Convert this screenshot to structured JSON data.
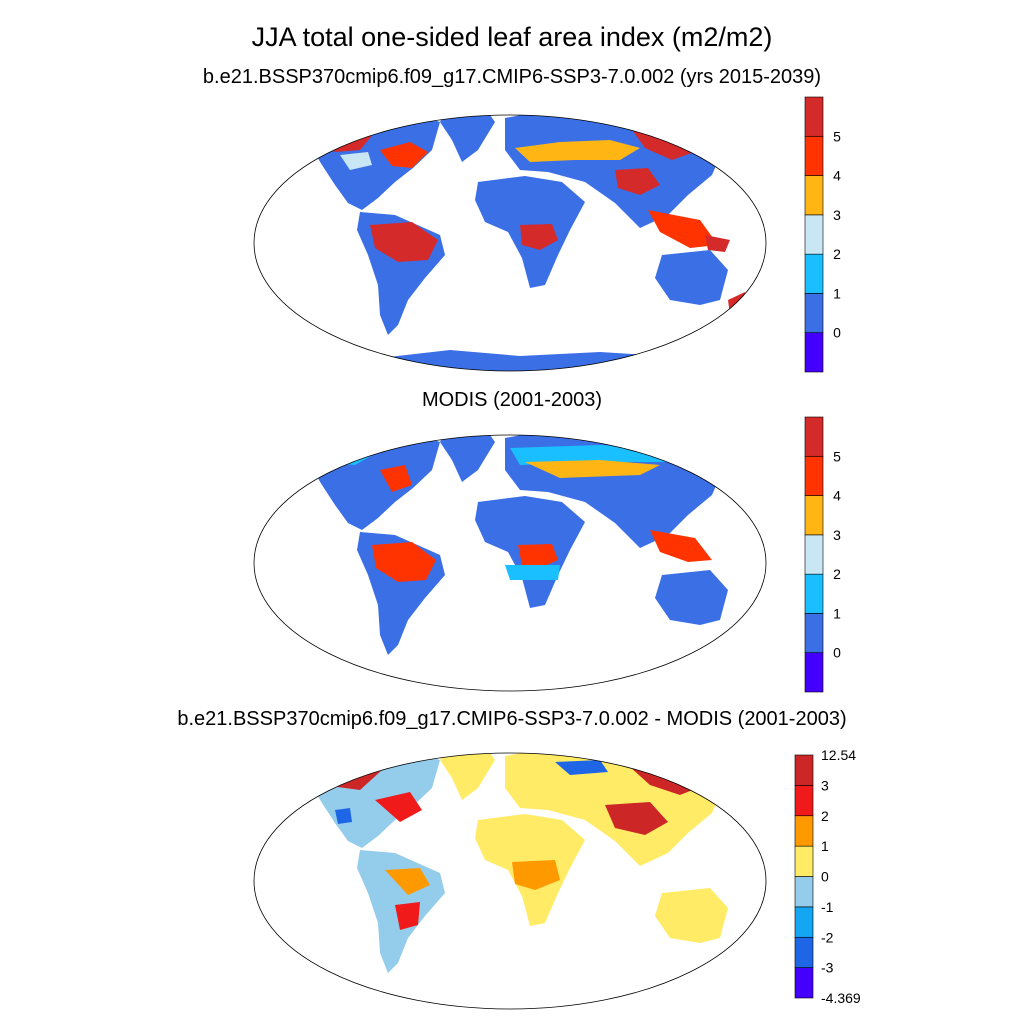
{
  "figure_title": "JJA total one-sided leaf area index (m2/m2)",
  "panels": [
    {
      "title": "b.e21.BSSP370cmip6.f09_g17.CMIP6-SSP3-7.0.002 (yrs 2015-2039)",
      "colorbar": {
        "labels": [
          "5",
          "4",
          "3",
          "2",
          "1",
          "0"
        ],
        "colors": [
          "#4400FF",
          "#3B6FE6",
          "#1ABFFF",
          "#C9E6F5",
          "#FFB614",
          "#FF3300",
          "#D42A2A"
        ]
      }
    },
    {
      "title": "MODIS (2001-2003)",
      "colorbar": {
        "labels": [
          "5",
          "4",
          "3",
          "2",
          "1",
          "0"
        ],
        "colors": [
          "#4400FF",
          "#3B6FE6",
          "#1ABFFF",
          "#C9E6F5",
          "#FFB614",
          "#FF3300",
          "#D42A2A"
        ]
      }
    },
    {
      "title": "b.e21.BSSP370cmip6.f09_g17.CMIP6-SSP3-7.0.002 - MODIS (2001-2003)",
      "colorbar": {
        "labels": [
          "12.54",
          "3",
          "2",
          "1",
          "0",
          "-1",
          "-2",
          "-3",
          "-4.369"
        ],
        "colors": [
          "#4400FF",
          "#1F66E6",
          "#13A6F2",
          "#94CCEB",
          "#FFEB66",
          "#FF9900",
          "#F01A1A",
          "#CC2626"
        ]
      }
    }
  ]
}
